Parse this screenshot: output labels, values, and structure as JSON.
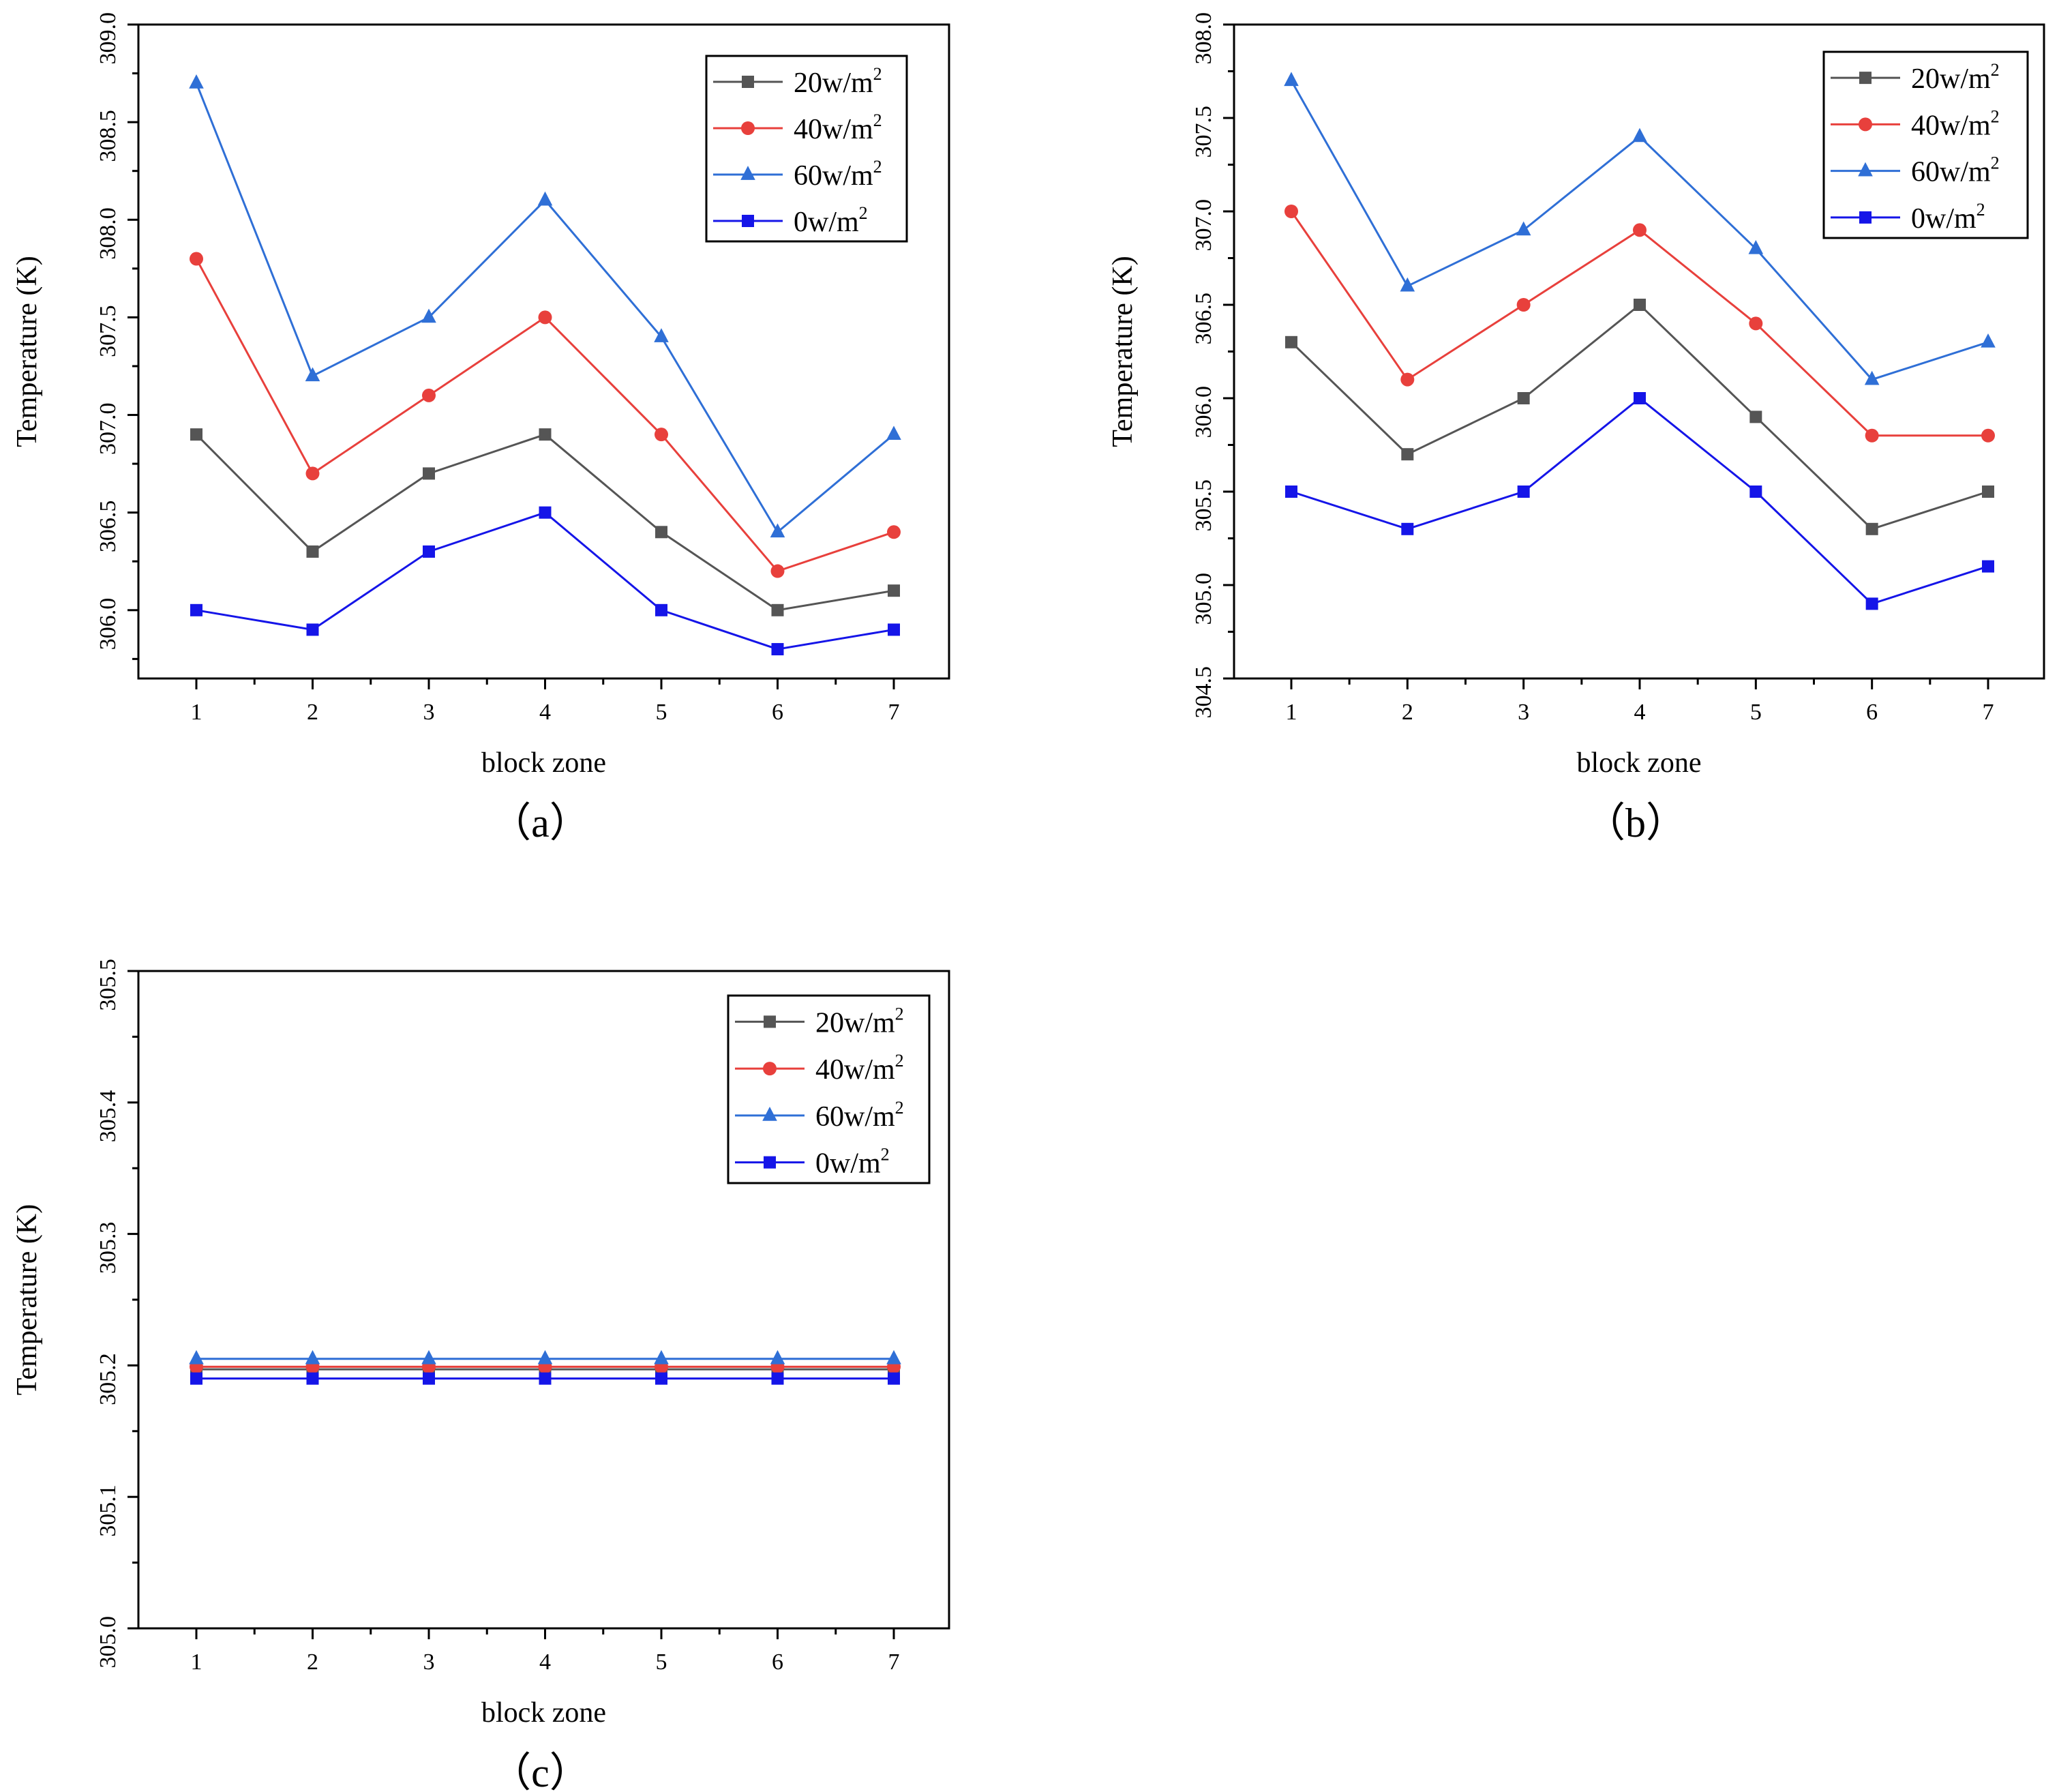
{
  "chart_data": [
    {
      "type": "line",
      "panel_label": "（a）",
      "xlabel": "block zone",
      "ylabel": "Temperature (K)",
      "categories": [
        "1",
        "2",
        "3",
        "4",
        "5",
        "6",
        "7"
      ],
      "ylim": [
        305.65,
        309.0
      ],
      "yticks": [
        306.0,
        306.5,
        307.0,
        307.5,
        308.0,
        308.5,
        309.0
      ],
      "ytick_labels": [
        "306.0",
        "306.5",
        "307.0",
        "307.5",
        "308.0",
        "308.5",
        "309.0"
      ],
      "legend_position": "top-right",
      "series": [
        {
          "name": "20w/m",
          "sup": "2",
          "color": "#555555",
          "marker": "square",
          "values": [
            306.9,
            306.3,
            306.7,
            306.9,
            306.4,
            306.0,
            306.1
          ]
        },
        {
          "name": "40w/m",
          "sup": "2",
          "color": "#e8403c",
          "marker": "circle",
          "values": [
            307.8,
            306.7,
            307.1,
            307.5,
            306.9,
            306.2,
            306.4
          ]
        },
        {
          "name": "60w/m",
          "sup": "2",
          "color": "#2f6fd6",
          "marker": "triangle",
          "values": [
            308.7,
            307.2,
            307.5,
            308.1,
            307.4,
            306.4,
            306.9
          ]
        },
        {
          "name": "0w/m",
          "sup": "2",
          "color": "#1515e8",
          "marker": "square",
          "values": [
            306.0,
            305.9,
            306.3,
            306.5,
            306.0,
            305.8,
            305.9
          ]
        }
      ]
    },
    {
      "type": "line",
      "panel_label": "（b）",
      "xlabel": "block zone",
      "ylabel": "Temperature (K)",
      "categories": [
        "1",
        "2",
        "3",
        "4",
        "5",
        "6",
        "7"
      ],
      "ylim": [
        304.5,
        308.0
      ],
      "yticks": [
        304.5,
        305.0,
        305.5,
        306.0,
        306.5,
        307.0,
        307.5,
        308.0
      ],
      "ytick_labels": [
        "304.5",
        "305.0",
        "305.5",
        "306.0",
        "306.5",
        "307.0",
        "307.5",
        "308.0"
      ],
      "legend_position": "top-right",
      "series": [
        {
          "name": "20w/m",
          "sup": "2",
          "color": "#555555",
          "marker": "square",
          "values": [
            306.3,
            305.7,
            306.0,
            306.5,
            305.9,
            305.3,
            305.5
          ]
        },
        {
          "name": "40w/m",
          "sup": "2",
          "color": "#e8403c",
          "marker": "circle",
          "values": [
            307.0,
            306.1,
            306.5,
            306.9,
            306.4,
            305.8,
            305.8
          ]
        },
        {
          "name": "60w/m",
          "sup": "2",
          "color": "#2f6fd6",
          "marker": "triangle",
          "values": [
            307.7,
            306.6,
            306.9,
            307.4,
            306.8,
            306.1,
            306.3
          ]
        },
        {
          "name": "0w/m",
          "sup": "2",
          "color": "#1515e8",
          "marker": "square",
          "values": [
            305.5,
            305.3,
            305.5,
            306.0,
            305.5,
            304.9,
            305.1
          ]
        }
      ]
    },
    {
      "type": "line",
      "panel_label": "（c）",
      "xlabel": "block zone",
      "ylabel": "Temperature (K)",
      "categories": [
        "1",
        "2",
        "3",
        "4",
        "5",
        "6",
        "7"
      ],
      "ylim": [
        305.0,
        305.5
      ],
      "yticks": [
        305.0,
        305.1,
        305.2,
        305.3,
        305.4,
        305.5
      ],
      "ytick_labels": [
        "305.0",
        "305.1",
        "305.2",
        "305.3",
        "305.4",
        "305.5"
      ],
      "legend_position": "top-right",
      "series": [
        {
          "name": "20w/m",
          "sup": "2",
          "color": "#555555",
          "marker": "square",
          "values": [
            305.197,
            305.197,
            305.197,
            305.197,
            305.197,
            305.197,
            305.197
          ]
        },
        {
          "name": "40w/m",
          "sup": "2",
          "color": "#e8403c",
          "marker": "circle",
          "values": [
            305.199,
            305.199,
            305.199,
            305.199,
            305.199,
            305.199,
            305.199
          ]
        },
        {
          "name": "60w/m",
          "sup": "2",
          "color": "#2f6fd6",
          "marker": "triangle",
          "values": [
            305.205,
            305.205,
            305.205,
            305.205,
            305.205,
            305.205,
            305.205
          ]
        },
        {
          "name": "0w/m",
          "sup": "2",
          "color": "#1515e8",
          "marker": "square",
          "values": [
            305.19,
            305.19,
            305.19,
            305.19,
            305.19,
            305.19,
            305.19
          ]
        }
      ]
    }
  ]
}
